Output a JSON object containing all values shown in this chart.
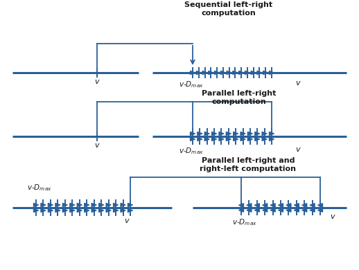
{
  "bg_color": "#ffffff",
  "line_color": "#2a6099",
  "text_color": "#1a1a1a",
  "row1_title": "Sequential left-right\ncomputation",
  "row2_title": "Parallel left-right\ncomputation",
  "row3_title": "Parallel left-right and\nright-left computation",
  "fig_width": 5.18,
  "fig_height": 3.9,
  "dpi": 100
}
